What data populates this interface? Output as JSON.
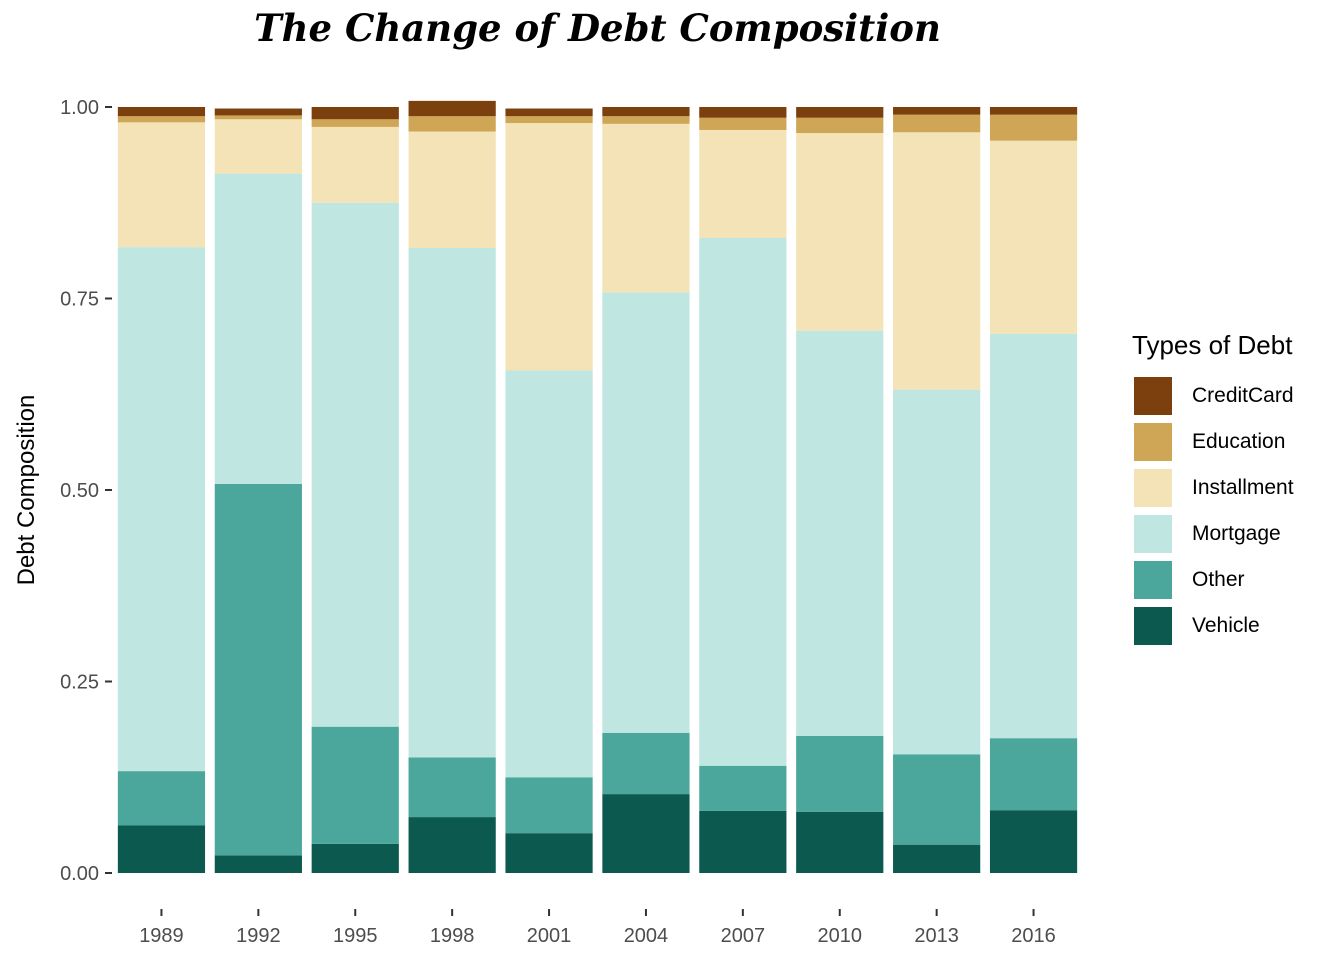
{
  "chart_data": {
    "type": "bar",
    "stacked": true,
    "title": "The Change of Debt Composition",
    "xlabel": "",
    "ylabel": "Debt Composition",
    "ylim": [
      0,
      1
    ],
    "y_ticks": [
      "0.00",
      "0.25",
      "0.50",
      "0.75",
      "1.00"
    ],
    "categories": [
      "1989",
      "1992",
      "1995",
      "1998",
      "2001",
      "2004",
      "2007",
      "2010",
      "2013",
      "2016"
    ],
    "legend_title": "Types of Debt",
    "legend_position": "right",
    "grid": false,
    "series": [
      {
        "name": "Vehicle",
        "color": "#0C5A4F",
        "values": [
          0.062,
          0.023,
          0.038,
          0.073,
          0.052,
          0.103,
          0.081,
          0.08,
          0.037,
          0.082
        ]
      },
      {
        "name": "Other",
        "color": "#4BA79C",
        "values": [
          0.071,
          0.485,
          0.153,
          0.078,
          0.073,
          0.08,
          0.059,
          0.099,
          0.118,
          0.094
        ]
      },
      {
        "name": "Mortgage",
        "color": "#BFE6E1",
        "values": [
          0.684,
          0.405,
          0.684,
          0.665,
          0.531,
          0.575,
          0.689,
          0.529,
          0.476,
          0.528
        ]
      },
      {
        "name": "Installment",
        "color": "#F4E3B6",
        "values": [
          0.163,
          0.071,
          0.099,
          0.152,
          0.323,
          0.22,
          0.141,
          0.258,
          0.336,
          0.252
        ]
      },
      {
        "name": "Education",
        "color": "#CFA655",
        "values": [
          0.008,
          0.005,
          0.01,
          0.02,
          0.009,
          0.01,
          0.016,
          0.02,
          0.023,
          0.034
        ]
      },
      {
        "name": "CreditCard",
        "color": "#7B400D",
        "values": [
          0.012,
          0.009,
          0.016,
          0.02,
          0.01,
          0.012,
          0.014,
          0.014,
          0.01,
          0.01
        ]
      }
    ]
  }
}
